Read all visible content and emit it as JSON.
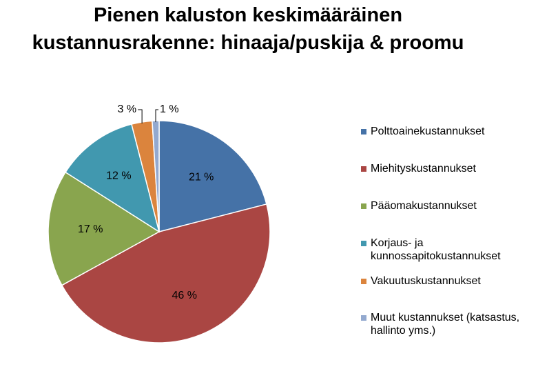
{
  "chart_data": {
    "type": "pie",
    "title": "Pienen kaluston keskimääräinen kustannusrakenne: hinaaja/puskija & proomu",
    "categories": [
      "Polttoainekustannukset",
      "Miehityskustannukset",
      "Pääomakustannukset",
      "Korjaus- ja kunnossapitokustannukset",
      "Vakuutuskustannukset",
      "Muut kustannukset (katsastus, hallinto yms.)"
    ],
    "values": [
      21,
      46,
      17,
      12,
      3,
      1
    ],
    "value_labels": [
      "21 %",
      "46 %",
      "17 %",
      "12 %",
      "3 %",
      "1 %"
    ],
    "colors": [
      "#4572a7",
      "#aa4643",
      "#89a54e",
      "#4198af",
      "#db843d",
      "#93a9cf"
    ],
    "legend": "right"
  }
}
